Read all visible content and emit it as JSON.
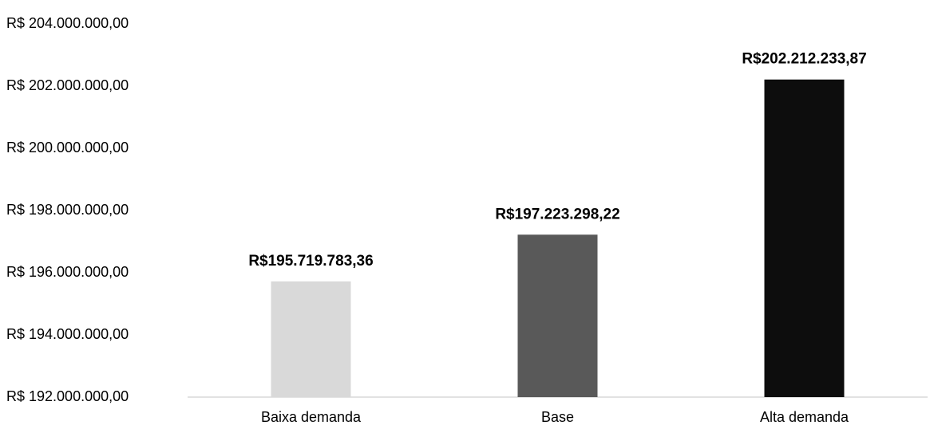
{
  "chart_data": {
    "type": "bar",
    "categories": [
      "Baixa demanda",
      "Base",
      "Alta demanda"
    ],
    "values": [
      195719783.36,
      197223298.22,
      202212233.87
    ],
    "value_labels": [
      "R$195.719.783,36",
      "R$197.223.298,22",
      "R$202.212.233,87"
    ],
    "colors": [
      "#d9d9d9",
      "#595959",
      "#0d0d0d"
    ],
    "ylim": [
      192000000,
      204000000
    ],
    "yticks": [
      {
        "value": 192000000,
        "label": "R$ 192.000.000,00"
      },
      {
        "value": 194000000,
        "label": "R$ 194.000.000,00"
      },
      {
        "value": 196000000,
        "label": "R$ 196.000.000,00"
      },
      {
        "value": 198000000,
        "label": "R$ 198.000.000,00"
      },
      {
        "value": 200000000,
        "label": "R$ 200.000.000,00"
      },
      {
        "value": 202000000,
        "label": "R$ 202.000.000,00"
      },
      {
        "value": 204000000,
        "label": "R$ 204.000.000,00"
      }
    ],
    "grid": false
  }
}
